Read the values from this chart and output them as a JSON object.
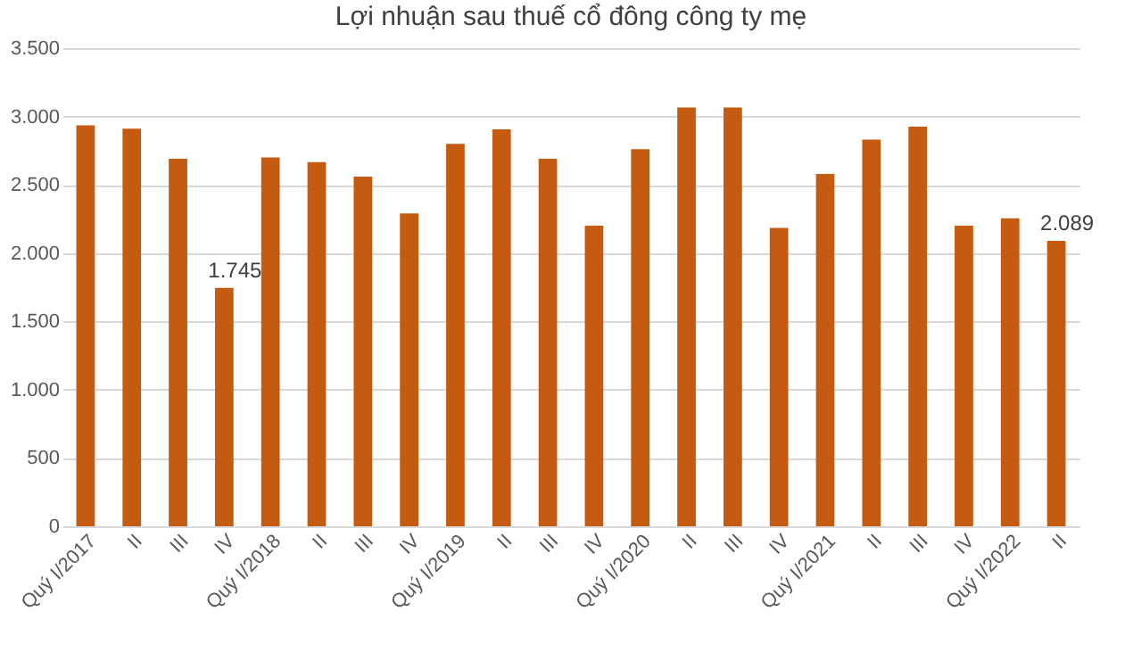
{
  "chart_data": {
    "type": "bar",
    "title": "Lợi nhuận sau thuế cổ đông công ty mẹ",
    "categories": [
      "Quý I/2017",
      "II",
      "III",
      "IV",
      "Quý I/2018",
      "II",
      "III",
      "IV",
      "Quý I/2019",
      "II",
      "III",
      "IV",
      "Quý I/2020",
      "II",
      "III",
      "IV",
      "Quý I/2021",
      "II",
      "III",
      "IV",
      "Quý I/2022",
      "II"
    ],
    "values": [
      2935,
      2910,
      2690,
      1745,
      2700,
      2665,
      2560,
      2290,
      2800,
      2905,
      2690,
      2200,
      2760,
      3065,
      3065,
      2185,
      2580,
      2830,
      2925,
      2200,
      2255,
      2089
    ],
    "value_labels": [
      null,
      null,
      null,
      "1.745",
      null,
      null,
      null,
      null,
      null,
      null,
      null,
      null,
      null,
      null,
      null,
      null,
      null,
      null,
      null,
      null,
      null,
      "2.089"
    ],
    "color": "#c55a11",
    "ylim": [
      0,
      3500
    ],
    "yticks": [
      {
        "value": 0,
        "label": "0"
      },
      {
        "value": 500,
        "label": "500"
      },
      {
        "value": 1000,
        "label": "1.000"
      },
      {
        "value": 1500,
        "label": "1.500"
      },
      {
        "value": 2000,
        "label": "2.000"
      },
      {
        "value": 2500,
        "label": "2.500"
      },
      {
        "value": 3000,
        "label": "3.000"
      },
      {
        "value": 3500,
        "label": "3.500"
      }
    ],
    "grid": "y"
  }
}
